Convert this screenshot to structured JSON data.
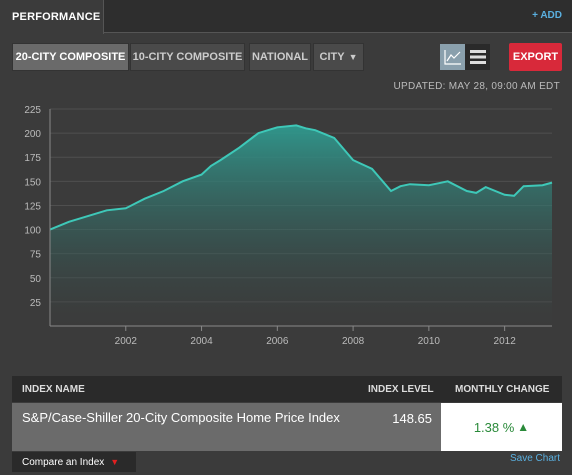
{
  "header": {
    "tab_label": "PERFORMANCE",
    "add_label": "+ ADD"
  },
  "toolbar": {
    "buttons": [
      {
        "label": "20-CITY COMPOSITE",
        "active": true
      },
      {
        "label": "10-CITY COMPOSITE",
        "active": false
      },
      {
        "label": "NATIONAL",
        "active": false
      },
      {
        "label": "CITY",
        "active": false
      }
    ],
    "export_label": "EXPORT",
    "view_icons": [
      "line-chart-icon",
      "table-view-icon"
    ]
  },
  "updated": "UPDATED: MAY 28, 09:00 AM EDT",
  "chart_data": {
    "type": "area",
    "xlim": [
      2000.0,
      2013.25
    ],
    "ylim": [
      0,
      225
    ],
    "yticks": [
      25,
      50,
      75,
      100,
      125,
      150,
      175,
      200,
      225
    ],
    "xticks": [
      2002,
      2004,
      2006,
      2008,
      2010,
      2012
    ],
    "x": [
      2000.0,
      2000.5,
      2001.0,
      2001.5,
      2002.0,
      2002.25,
      2002.5,
      2003.0,
      2003.5,
      2004.0,
      2004.25,
      2004.5,
      2005.0,
      2005.5,
      2006.0,
      2006.5,
      2006.75,
      2007.0,
      2007.5,
      2008.0,
      2008.5,
      2009.0,
      2009.25,
      2009.5,
      2010.0,
      2010.25,
      2010.5,
      2011.0,
      2011.25,
      2011.5,
      2012.0,
      2012.25,
      2012.5,
      2013.0,
      2013.25
    ],
    "values": [
      100,
      108,
      114,
      120,
      122,
      127,
      132,
      140,
      150,
      157,
      166,
      172,
      185,
      200,
      206,
      208,
      205,
      203,
      195,
      172,
      163,
      140,
      145,
      147,
      146,
      148,
      150,
      140,
      138,
      144,
      136,
      135,
      145,
      146,
      148.65
    ],
    "line_color": "#3ec8b8",
    "fill_top_color": "#2f9a8f",
    "grid": true
  },
  "table": {
    "headers": {
      "name": "INDEX NAME",
      "level": "INDEX LEVEL",
      "change": "MONTHLY CHANGE"
    },
    "row": {
      "name": "S&P/Case-Shiller 20-City Composite Home Price Index",
      "level": "148.65",
      "change": "1.38 %"
    }
  },
  "footer": {
    "compare_label": "Compare an Index",
    "save_label": "Save Chart"
  },
  "colors": {
    "background": "#3b3b3b",
    "export": "#d8293a",
    "link": "#5ab0e0",
    "positive": "#2a8a3a"
  }
}
